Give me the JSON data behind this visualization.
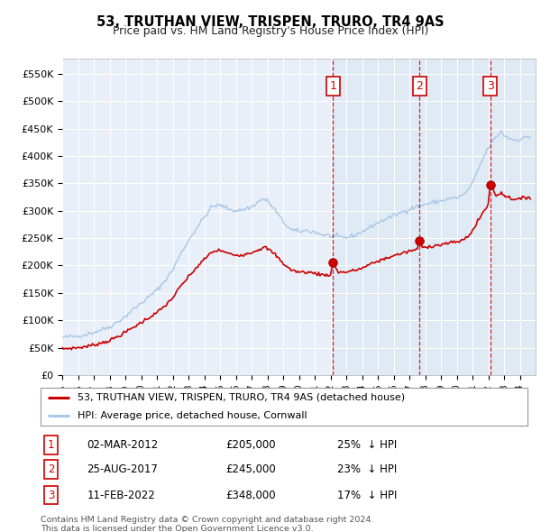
{
  "title": "53, TRUTHAN VIEW, TRISPEN, TRURO, TR4 9AS",
  "subtitle": "Price paid vs. HM Land Registry's House Price Index (HPI)",
  "ylabel_ticks": [
    "£0",
    "£50K",
    "£100K",
    "£150K",
    "£200K",
    "£250K",
    "£300K",
    "£350K",
    "£400K",
    "£450K",
    "£500K",
    "£550K"
  ],
  "ytick_values": [
    0,
    50000,
    100000,
    150000,
    200000,
    250000,
    300000,
    350000,
    400000,
    450000,
    500000,
    550000
  ],
  "ylim": [
    0,
    578000
  ],
  "xlim_start": 1995.0,
  "xlim_end": 2025.0,
  "hpi_color": "#a8c8e8",
  "hpi_fill_color": "#ddeeff",
  "price_color": "#cc0000",
  "dashed_color": "#cc0000",
  "sale_marker_color": "#cc0000",
  "background_color": "#e8eff8",
  "grid_color": "#ffffff",
  "legend_label_price": "53, TRUTHAN VIEW, TRISPEN, TRURO, TR4 9AS (detached house)",
  "legend_label_hpi": "HPI: Average price, detached house, Cornwall",
  "sales": [
    {
      "num": 1,
      "date": "02-MAR-2012",
      "price": 205000,
      "pct": "25%",
      "dir": "↓",
      "x": 2012.17
    },
    {
      "num": 2,
      "date": "25-AUG-2017",
      "price": 245000,
      "pct": "23%",
      "dir": "↓",
      "x": 2017.65
    },
    {
      "num": 3,
      "date": "11-FEB-2022",
      "price": 348000,
      "pct": "17%",
      "dir": "↓",
      "x": 2022.12
    }
  ],
  "footnote1": "Contains HM Land Registry data © Crown copyright and database right 2024.",
  "footnote2": "This data is licensed under the Open Government Licence v3.0."
}
